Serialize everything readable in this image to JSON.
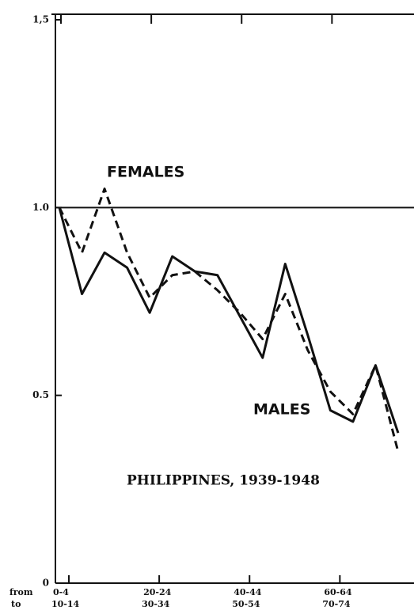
{
  "chart_data": {
    "type": "line",
    "annotations": [
      "FEMALES",
      "MALES",
      "PHILIPPINES, 1939-1948"
    ],
    "x_row_labels": [
      "from",
      "to"
    ],
    "categories": [
      "0-4",
      null,
      null,
      null,
      "20-24",
      null,
      null,
      null,
      "40-44",
      null,
      null,
      null,
      "60-64",
      null,
      null,
      null
    ],
    "categories_to": [
      "10-14",
      null,
      null,
      null,
      "30-34",
      null,
      null,
      null,
      "50-54",
      null,
      null,
      null,
      "70-74",
      null,
      null,
      null
    ],
    "series": [
      {
        "name": "MALES",
        "color": "#111111",
        "dash": false,
        "values": [
          1.0,
          0.77,
          0.88,
          0.84,
          0.72,
          0.87,
          0.83,
          0.82,
          0.71,
          0.6,
          0.85,
          0.66,
          0.46,
          0.43,
          0.58,
          0.4
        ]
      },
      {
        "name": "FEMALES",
        "color": "#111111",
        "dash": true,
        "values": [
          1.0,
          0.88,
          1.05,
          0.88,
          0.76,
          0.82,
          0.83,
          0.78,
          0.72,
          0.65,
          0.77,
          0.62,
          0.51,
          0.45,
          0.58,
          0.35
        ]
      }
    ],
    "reference_line": 1,
    "ylim": [
      0,
      1.5
    ],
    "yticks": [
      0,
      0.5,
      {
        "value": 1,
        "label": "1.0"
      },
      {
        "value": 1.5,
        "label": "1,5"
      }
    ]
  }
}
